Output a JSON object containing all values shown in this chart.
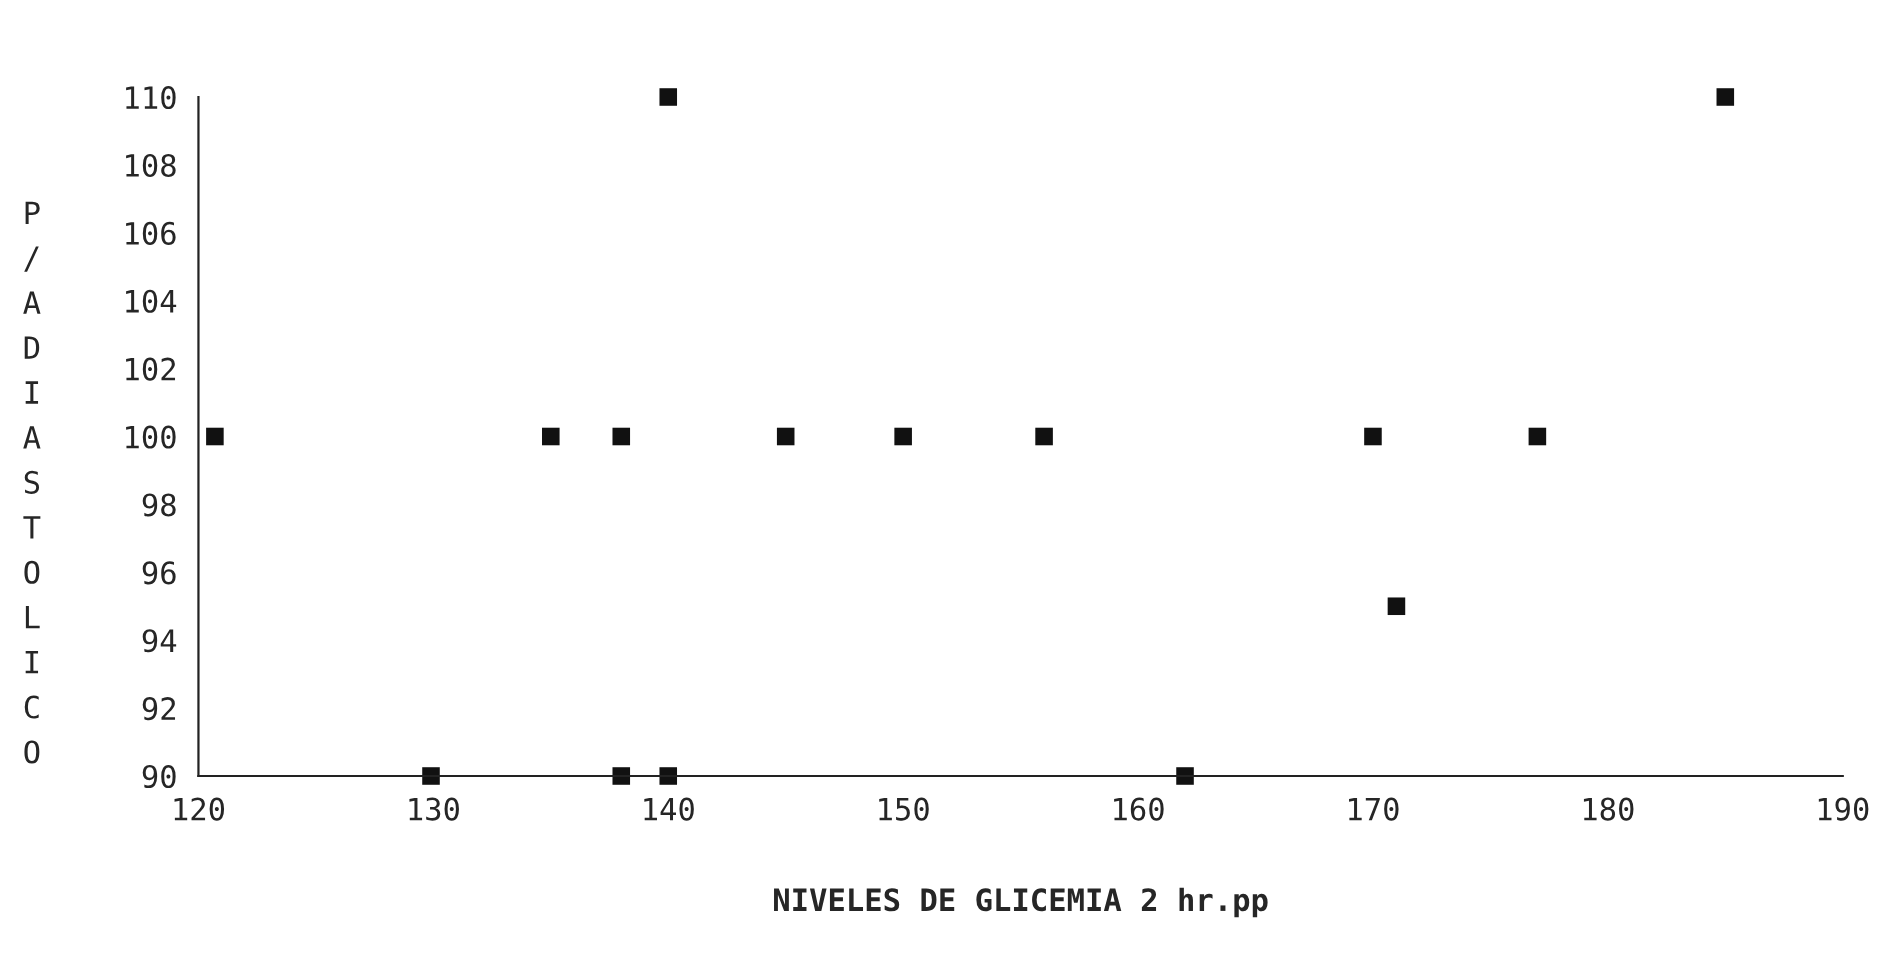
{
  "chart_data": {
    "type": "scatter",
    "xlabel": "NIVELES DE GLICEMIA 2 hr.pp",
    "ylabel": "P/A DIASTOLICO",
    "series": [
      {
        "color": "#111111",
        "x": [
          120.7,
          129.9,
          135,
          138,
          138,
          140,
          140,
          145,
          150,
          156,
          162,
          170,
          171,
          177,
          185
        ],
        "values": [
          100,
          90,
          100,
          100,
          90,
          110,
          90,
          100,
          100,
          100,
          90,
          100,
          95,
          100,
          110
        ]
      }
    ],
    "marker": "square",
    "grid": false,
    "legend": false,
    "xlim": [
      120,
      190
    ],
    "xticks": [
      120,
      130,
      140,
      150,
      160,
      170,
      180,
      190
    ],
    "ylim": [
      90,
      110
    ],
    "yticks": [
      90,
      92,
      94,
      96,
      98,
      100,
      102,
      104,
      106,
      108,
      110
    ]
  }
}
